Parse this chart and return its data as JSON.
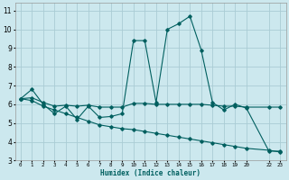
{
  "xlabel": "Humidex (Indice chaleur)",
  "background_color": "#cce8ee",
  "grid_color": "#aaccd4",
  "line_color": "#005f5f",
  "xlim": [
    -0.5,
    23.5
  ],
  "ylim": [
    3,
    11.4
  ],
  "yticks": [
    3,
    4,
    5,
    6,
    7,
    8,
    9,
    10,
    11
  ],
  "xticks": [
    0,
    1,
    2,
    3,
    4,
    5,
    6,
    7,
    8,
    9,
    10,
    11,
    12,
    13,
    14,
    15,
    16,
    17,
    18,
    19,
    20,
    22,
    23
  ],
  "xtick_labels": [
    "0",
    "1",
    "2",
    "3",
    "4",
    "5",
    "6",
    "7",
    "8",
    "9",
    "10",
    "11",
    "12",
    "13",
    "14",
    "15",
    "16",
    "17",
    "18",
    "19",
    "20",
    "22",
    "23"
  ],
  "line1_x": [
    0,
    1,
    2,
    3,
    4,
    5,
    6,
    7,
    8,
    9,
    10,
    11,
    12,
    13,
    14,
    15,
    16,
    17,
    18,
    19,
    20,
    22,
    23
  ],
  "line1_y": [
    6.3,
    6.8,
    6.0,
    5.5,
    5.9,
    5.2,
    5.9,
    5.3,
    5.35,
    5.5,
    9.4,
    9.4,
    6.1,
    10.0,
    10.3,
    10.7,
    8.9,
    6.1,
    5.7,
    6.0,
    5.8,
    3.5,
    3.5
  ],
  "line2_x": [
    0,
    1,
    2,
    3,
    4,
    5,
    6,
    7,
    8,
    9,
    10,
    11,
    12,
    13,
    14,
    15,
    16,
    17,
    18,
    19,
    20,
    22,
    23
  ],
  "line2_y": [
    6.3,
    6.35,
    6.1,
    5.9,
    5.95,
    5.9,
    5.95,
    5.85,
    5.85,
    5.85,
    6.05,
    6.05,
    6.0,
    6.0,
    6.0,
    6.0,
    6.0,
    5.95,
    5.9,
    5.9,
    5.85,
    5.85,
    5.85
  ],
  "line3_x": [
    0,
    1,
    2,
    3,
    4,
    5,
    6,
    7,
    8,
    9,
    10,
    11,
    12,
    13,
    14,
    15,
    16,
    17,
    18,
    19,
    20,
    22,
    23
  ],
  "line3_y": [
    6.3,
    6.2,
    5.9,
    5.7,
    5.5,
    5.3,
    5.1,
    4.9,
    4.8,
    4.7,
    4.65,
    4.55,
    4.45,
    4.35,
    4.25,
    4.15,
    4.05,
    3.95,
    3.85,
    3.75,
    3.65,
    3.55,
    3.45
  ]
}
